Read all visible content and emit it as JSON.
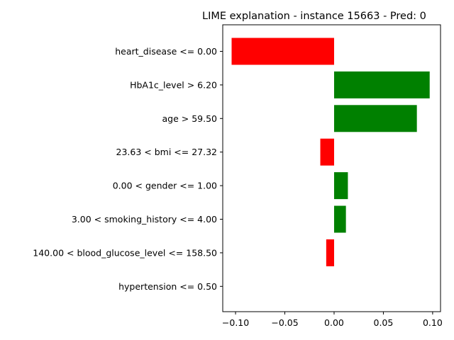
{
  "chart_data": {
    "type": "bar",
    "orientation": "horizontal",
    "title": "LIME explanation - instance 15663 - Pred: 0",
    "xlabel": "",
    "ylabel": "",
    "xlim": [
      -0.113,
      0.108
    ],
    "grid": false,
    "legend": "none",
    "categories": [
      "heart_disease <= 0.00",
      "HbA1c_level > 6.20",
      "age > 59.50",
      "23.63 < bmi <= 27.32",
      "0.00 < gender <= 1.00",
      "3.00 < smoking_history <= 4.00",
      "140.00 < blood_glucose_level <= 158.50",
      "hypertension <= 0.50"
    ],
    "values": [
      -0.104,
      0.097,
      0.084,
      -0.014,
      0.014,
      0.012,
      -0.008,
      0.0
    ],
    "x_ticks": [
      -0.1,
      -0.05,
      0.0,
      0.05,
      0.1
    ],
    "x_tick_labels": [
      "−0.10",
      "−0.05",
      "0.00",
      "0.05",
      "0.10"
    ],
    "colors": {
      "positive": "#008000",
      "negative": "#ff0000",
      "axis": "#000000"
    }
  }
}
